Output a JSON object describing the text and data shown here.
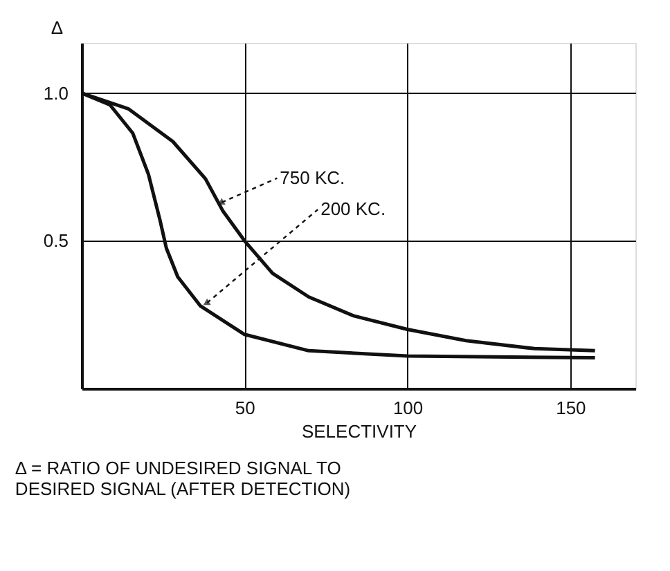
{
  "chart_data": {
    "type": "line",
    "xlabel": "SELECTIVITY",
    "ylabel": "Δ",
    "xlim": [
      0,
      170
    ],
    "xticks": [
      50,
      100,
      150
    ],
    "ylim": [
      0,
      1.17
    ],
    "yticks": [
      {
        "value": 0.5,
        "label": "0.5"
      },
      {
        "value": 1.0,
        "label": "1.0"
      }
    ],
    "grid": true,
    "legend": false,
    "line_style": "solid",
    "marker": "none",
    "series": [
      {
        "color": "#111111",
        "x": [
          0,
          14.3,
          28,
          38,
          43.4,
          50,
          58.6,
          69.7,
          83.5,
          100,
          118,
          139,
          157.6
        ],
        "values": [
          1.0,
          0.947,
          0.836,
          0.71,
          0.6,
          0.5,
          0.39,
          0.31,
          0.246,
          0.2,
          0.162,
          0.135,
          0.128
        ]
      },
      {
        "color": "#111111",
        "x": [
          0,
          8.7,
          15.7,
          20.5,
          24,
          26,
          29.5,
          36.4,
          50,
          69.7,
          100,
          157.6
        ],
        "values": [
          1.0,
          0.96,
          0.864,
          0.725,
          0.572,
          0.475,
          0.378,
          0.28,
          0.183,
          0.128,
          0.11,
          0.104
        ]
      }
    ],
    "annotations": [
      {
        "text": "750 KC.",
        "x": 43,
        "y": 0.63
      },
      {
        "text": "200 KC.",
        "x": 38.5,
        "y": 0.29
      },
      "Δ = RATIO OF UNDESIRED SIGNAL TO\nDESIRED SIGNAL (AFTER DETECTION)"
    ]
  }
}
